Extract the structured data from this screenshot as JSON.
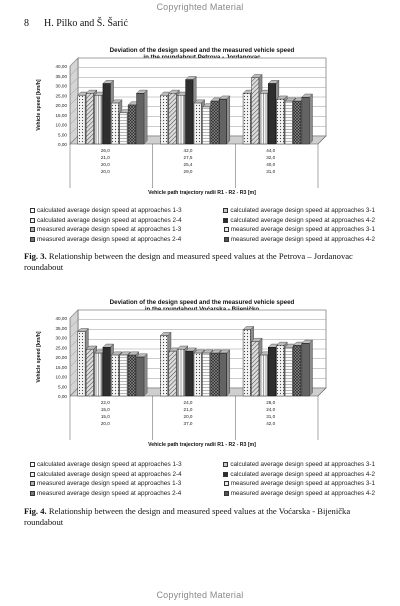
{
  "watermark_top": "Copyrighted Material",
  "watermark_bottom": "Copyrighted Material",
  "page_number": "8",
  "authors": "H. Pilko  and  Š. Šarić",
  "colors": {
    "axis": "#333333",
    "grid": "#aaaaaa",
    "bar_light": "#e8e8e8",
    "bar_mid": "#9a9a9a",
    "bar_dark": "#3c3c3c"
  },
  "legend_items": [
    "calculated average design speed at approaches 1-3",
    "calculated average design speed at approaches 3-1",
    "calculated average design speed at approaches 2-4",
    "calculated average design speed at approaches 4-2",
    "measured average design speed at approaches 1-3",
    "measured average design speed at approaches 3-1",
    "measured average design speed at approaches 2-4",
    "measured average design speed at approaches 4-2"
  ],
  "figures": [
    {
      "caption_label": "Fig. 3.",
      "caption_text": "Relationship between the design and measured speed values at the Petrova – Jordanovac roundabout",
      "chart_data": {
        "type": "bar",
        "title_line1": "Deviation of the design speed and the measured vehicle speed",
        "title_line2": "in the roundabout Petrova - Jordanovac",
        "ylabel": "Vehicle speed [km/h]",
        "xlabel": "Vehicle path trajectory radii R1 - R2 - R3 [m]",
        "ylim": [
          0,
          40
        ],
        "yticks": [
          "0,00",
          "5,00",
          "10,00",
          "15,00",
          "20,00",
          "25,00",
          "30,00",
          "35,00",
          "40,00"
        ],
        "grid": true,
        "legend_placement": "bottom",
        "categories": [
          [
            "26,0",
            "21,0",
            "20,0",
            "20,0"
          ],
          [
            "42,0",
            "27,5",
            "25,4",
            "29,0"
          ],
          [
            "44,0",
            "32,0",
            "40,0",
            "31,0"
          ]
        ],
        "series": [
          {
            "values": [
              25,
              25,
              26
            ]
          },
          {
            "values": [
              26,
              26,
              34
            ]
          },
          {
            "values": [
              25,
              25,
              26
            ]
          },
          {
            "values": [
              31,
              33,
              31
            ]
          },
          {
            "values": [
              21,
              21,
              23
            ]
          },
          {
            "values": [
              16,
              19,
              22
            ]
          },
          {
            "values": [
              20,
              22,
              22
            ]
          },
          {
            "values": [
              26,
              23,
              24
            ]
          }
        ]
      }
    },
    {
      "caption_label": "Fig. 4.",
      "caption_text": "Relationship between the design and measured speed values at the Voćarska - Bijenička roundabout",
      "chart_data": {
        "type": "bar",
        "title_line1": "Deviation of the design speed and the measured vehicle speed",
        "title_line2": "in the roundabout Voćarska - Bijeničko",
        "ylabel": "Vehicle speed [km/h]",
        "xlabel": "Vehicle path trajectory radii R1 - R2 - R3 [m]",
        "ylim": [
          0,
          40
        ],
        "yticks": [
          "0,00",
          "5,00",
          "10,00",
          "15,00",
          "20,00",
          "25,00",
          "30,00",
          "35,00",
          "40,00"
        ],
        "grid": true,
        "legend_placement": "bottom",
        "categories": [
          [
            "22,0",
            "15,0",
            "15,0",
            "20,0"
          ],
          [
            "24,0",
            "21,0",
            "20,0",
            "37,0"
          ],
          [
            "28,0",
            "24,0",
            "31,0",
            "42,0"
          ]
        ],
        "series": [
          {
            "values": [
              33,
              31,
              34
            ]
          },
          {
            "values": [
              24,
              23,
              28
            ]
          },
          {
            "values": [
              22,
              24,
              21
            ]
          },
          {
            "values": [
              25,
              23,
              25
            ]
          },
          {
            "values": [
              21,
              22,
              26
            ]
          },
          {
            "values": [
              21,
              22,
              25
            ]
          },
          {
            "values": [
              21,
              22,
              26
            ]
          },
          {
            "values": [
              20,
              22,
              27
            ]
          }
        ]
      }
    }
  ]
}
